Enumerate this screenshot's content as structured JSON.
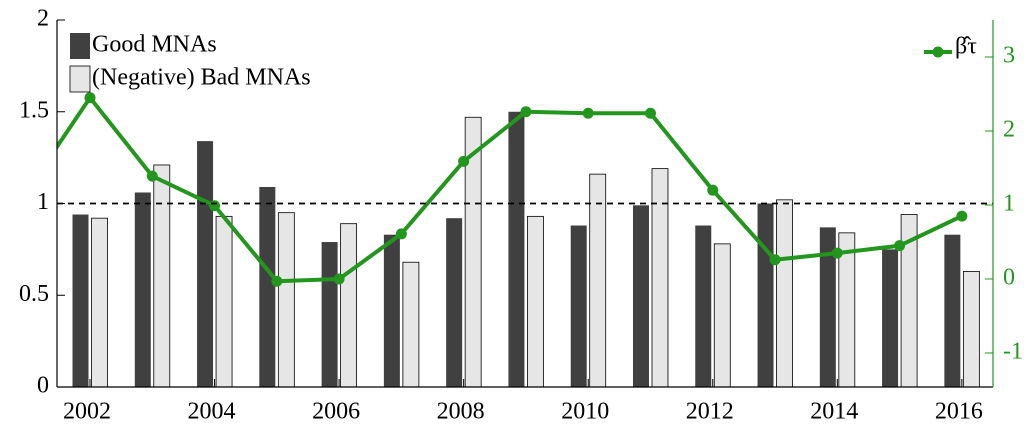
{
  "chart_data": {
    "type": "bar",
    "x": [
      2002,
      2003,
      2004,
      2005,
      2006,
      2007,
      2008,
      2009,
      2010,
      2011,
      2012,
      2013,
      2014,
      2015,
      2016
    ],
    "xlim": [
      2001.47,
      2016.5
    ],
    "xticks": [
      2002,
      2004,
      2006,
      2008,
      2010,
      2012,
      2014,
      2016
    ],
    "ylim": [
      0,
      2
    ],
    "yticks": [
      0,
      0.5,
      1,
      1.5,
      2
    ],
    "y2lim": [
      -1.46,
      3.5
    ],
    "y2ticks": [
      -1,
      0,
      1,
      2,
      3
    ],
    "y2color": "#23961e",
    "reference_line": 1,
    "series": [
      {
        "name": "Good MNAs",
        "type": "bar",
        "color": "#404040",
        "values": [
          0.94,
          1.06,
          1.34,
          1.09,
          0.79,
          0.83,
          0.92,
          1.5,
          0.88,
          0.99,
          0.88,
          1.0,
          0.87,
          0.75,
          0.83
        ]
      },
      {
        "name": "(Negative) Bad MNAs",
        "type": "bar",
        "color": "#e6e6e6",
        "values": [
          0.92,
          1.21,
          0.93,
          0.95,
          0.89,
          0.68,
          1.47,
          0.93,
          1.16,
          1.19,
          0.78,
          1.02,
          0.84,
          0.94,
          0.63
        ]
      },
      {
        "name": "β̂τ",
        "type": "line",
        "axis": "y2",
        "color": "#23961e",
        "x": [
          2001,
          2002,
          2003,
          2004,
          2005,
          2006,
          2007,
          2008,
          2009,
          2010,
          2011,
          2012,
          2013,
          2014,
          2015,
          2016
        ],
        "values": [
          1.2,
          2.45,
          1.39,
          0.99,
          -0.03,
          0.0,
          0.61,
          1.59,
          2.26,
          2.24,
          2.24,
          1.2,
          0.26,
          0.35,
          0.45,
          0.85
        ]
      }
    ]
  }
}
